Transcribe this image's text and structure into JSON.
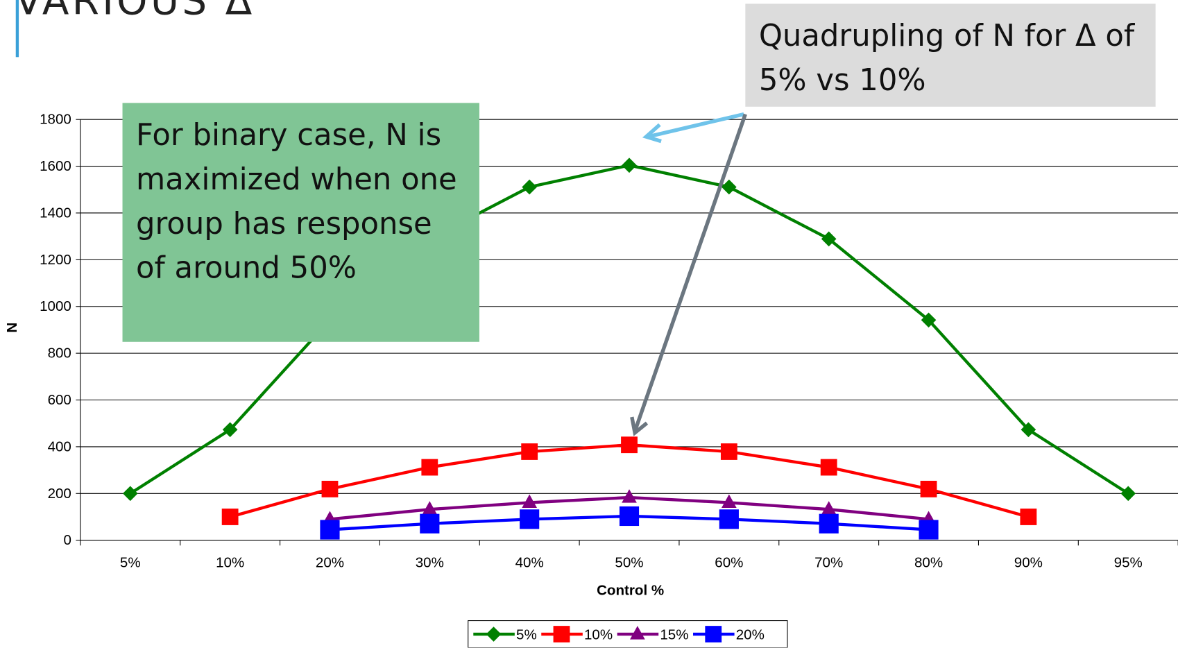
{
  "title": "VARIOUS Δ",
  "callouts": [
    "For binary case, N is maximized when one group has response of around 50%",
    "Quadrupling of N for Δ of 5% vs 10%"
  ],
  "chart_data": {
    "type": "line",
    "categories": [
      "5%",
      "10%",
      "20%",
      "30%",
      "40%",
      "50%",
      "60%",
      "70%",
      "80%",
      "90%",
      "95%"
    ],
    "x_label": "Control %",
    "y_label": "N",
    "ylim": [
      0,
      1800
    ],
    "yticks": [
      0,
      200,
      400,
      600,
      800,
      1000,
      1200,
      1400,
      1600,
      1800
    ],
    "grid": true,
    "series": [
      {
        "name": "5%",
        "color": "#008000",
        "marker": "diamond",
        "values": [
          200,
          473,
          942,
          1289,
          1511,
          1604,
          1511,
          1289,
          942,
          473,
          200
        ]
      },
      {
        "name": "10%",
        "color": "#ff0000",
        "marker": "square",
        "values": [
          null,
          100,
          219,
          312,
          379,
          408,
          379,
          312,
          219,
          100,
          null
        ]
      },
      {
        "name": "15%",
        "color": "#800080",
        "marker": "triangle",
        "values": [
          null,
          null,
          90,
          132,
          161,
          183,
          161,
          132,
          90,
          null,
          null
        ]
      },
      {
        "name": "20%",
        "color": "#0000ff",
        "marker": "bigsquare",
        "values": [
          null,
          null,
          45,
          71,
          90,
          103,
          90,
          71,
          45,
          null,
          null
        ]
      }
    ]
  }
}
